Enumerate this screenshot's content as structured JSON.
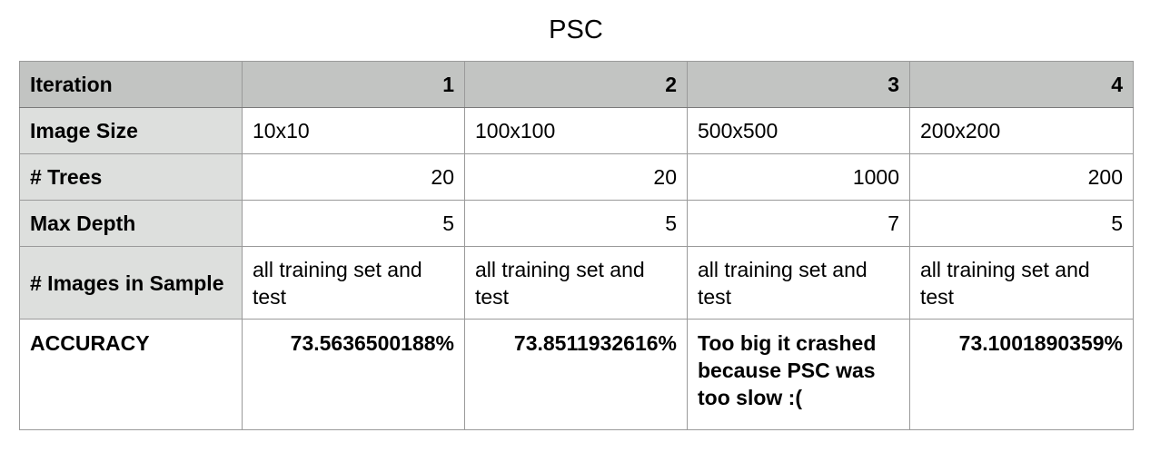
{
  "chart_data": {
    "type": "table",
    "title": "PSC",
    "columns": [
      "Iteration",
      "1",
      "2",
      "3",
      "4"
    ],
    "rows": [
      {
        "label": "Image Size",
        "align": "left",
        "cells": [
          "10x10",
          "100x100",
          "500x500",
          "200x200"
        ]
      },
      {
        "label": "# Trees",
        "align": "right",
        "cells": [
          "20",
          "20",
          "1000",
          "200"
        ]
      },
      {
        "label": "Max Depth",
        "align": "right",
        "cells": [
          "5",
          "5",
          "7",
          "5"
        ]
      },
      {
        "label": "# Images in Sample",
        "align": "left",
        "cells": [
          "all training set and test",
          "all training set and test",
          "all training set and test",
          "all training set and test"
        ]
      },
      {
        "label": "ACCURACY",
        "align": "mixed",
        "cells": [
          "73.5636500188%",
          "73.8511932616%",
          "Too big it crashed because PSC was too slow :(",
          "73.1001890359%"
        ]
      }
    ]
  }
}
